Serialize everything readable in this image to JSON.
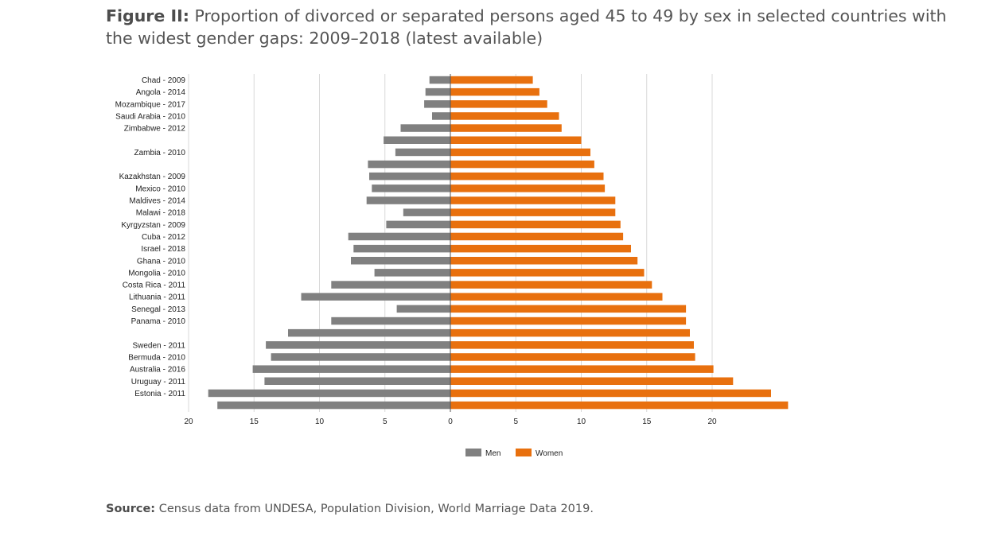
{
  "title": {
    "prefix": "Figure II:",
    "text": "Proportion of divorced or separated persons aged 45 to 49 by sex in selected countries with the widest gender gaps: 2009–2018 (latest available)"
  },
  "source": {
    "prefix": "Source:",
    "text": "Census data from UNDESA, Population Division, World Marriage Data 2019."
  },
  "chart_data": {
    "type": "bar",
    "orientation": "horizontal-diverging",
    "categories": [
      "Chad - 2009",
      "Angola - 2014",
      "Mozambique - 2017",
      "Saudi Arabia - 2010",
      "Zimbabwe - 2012",
      "",
      "Zambia - 2010",
      "",
      "Kazakhstan - 2009",
      "Mexico - 2010",
      "Maldives - 2014",
      "Malawi - 2018",
      "Kyrgyzstan - 2009",
      "Cuba - 2012",
      "Israel - 2018",
      "Ghana - 2010",
      "Mongolia - 2010",
      "Costa Rica - 2011",
      "Lithuania - 2011",
      "Senegal - 2013",
      "Panama - 2010",
      "",
      "Sweden - 2011",
      "Bermuda - 2010",
      "Australia - 2016",
      "Uruguay - 2011",
      "Estonia - 2011",
      ""
    ],
    "series": [
      {
        "name": "Men",
        "color": "#808080",
        "direction": "left",
        "values": [
          1.6,
          1.9,
          2.0,
          1.4,
          3.8,
          5.1,
          4.2,
          6.3,
          6.2,
          6.0,
          6.4,
          3.6,
          4.9,
          7.8,
          7.4,
          7.6,
          5.8,
          9.1,
          11.4,
          4.1,
          9.1,
          12.4,
          14.1,
          13.7,
          15.1,
          14.2,
          18.5,
          17.8
        ]
      },
      {
        "name": "Women",
        "color": "#e8700e",
        "direction": "right",
        "values": [
          6.3,
          6.8,
          7.4,
          8.3,
          8.5,
          10.0,
          10.7,
          11.0,
          11.7,
          11.8,
          12.6,
          12.6,
          13.0,
          13.2,
          13.8,
          14.3,
          14.8,
          15.4,
          16.2,
          18.0,
          18.0,
          18.3,
          18.6,
          18.7,
          20.1,
          21.6,
          24.5,
          25.8
        ]
      }
    ],
    "x_tick_labels": [
      "20",
      "15",
      "10",
      "5",
      "0",
      "5",
      "10",
      "15",
      "20"
    ],
    "xlim": [
      -20,
      25.9
    ],
    "grid": true,
    "legend": "bottom-center"
  }
}
